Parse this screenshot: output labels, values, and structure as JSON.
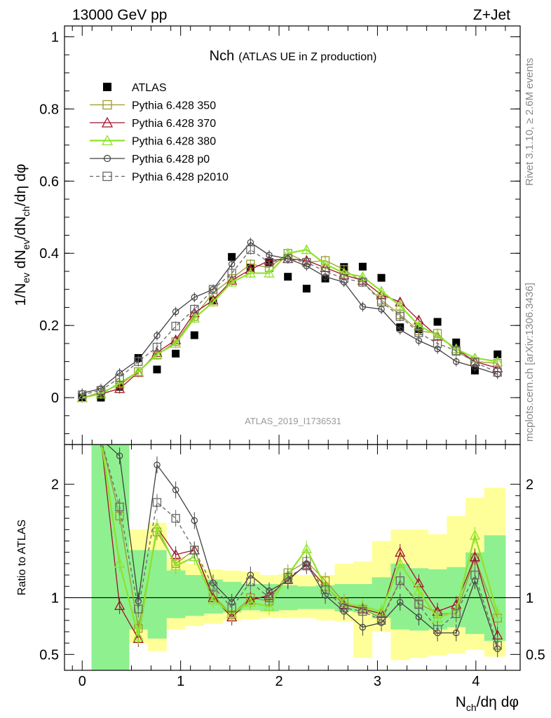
{
  "header": {
    "left": "13000 GeV pp",
    "right": "Z+Jet"
  },
  "side_text": {
    "rivet": "Rivet 3.1.10, ≥ 2.6M events",
    "mcplots": "mcplots.cern.ch [arXiv:1306.3436]"
  },
  "analysis_id": "ATLAS_2019_I1736531",
  "chart_data": [
    {
      "type": "scatter",
      "title_main": "Nch",
      "title_sub": "(ATLAS UE in Z production)",
      "ylabel": "1/N_ev dN_ev/dN_ch/dη dφ",
      "xlabel": "N_ch/dη dφ",
      "xlim": [
        -0.18,
        4.45
      ],
      "ylim": [
        -0.13,
        1.03
      ],
      "xticks": [
        "0",
        "1",
        "2",
        "3",
        "4"
      ],
      "yticks": [
        "0",
        "0.2",
        "0.4",
        "0.6",
        "0.8",
        "1"
      ],
      "legend_position": "top-left",
      "x": [
        0.0,
        0.19,
        0.38,
        0.57,
        0.76,
        0.95,
        1.14,
        1.33,
        1.52,
        1.71,
        1.9,
        2.09,
        2.28,
        2.47,
        2.66,
        2.85,
        3.04,
        3.23,
        3.42,
        3.61,
        3.8,
        3.99,
        4.22
      ],
      "series": [
        {
          "name": "ATLAS",
          "color": "#000000",
          "marker": "filled-square",
          "line": "none",
          "values": [
            0.0,
            0.0,
            0.03,
            0.11,
            0.078,
            0.122,
            0.173,
            0.27,
            0.39,
            0.36,
            0.375,
            0.335,
            0.302,
            0.33,
            0.362,
            0.363,
            0.332,
            0.195,
            0.19,
            0.21,
            0.153,
            0.075,
            0.12
          ]
        },
        {
          "name": "Pythia 6.428 350",
          "color": "#9a9a2e",
          "marker": "open-square",
          "line": "solid",
          "values": [
            0.0,
            0.015,
            0.035,
            0.072,
            0.118,
            0.155,
            0.225,
            0.29,
            0.33,
            0.37,
            0.36,
            0.4,
            0.375,
            0.38,
            0.355,
            0.32,
            0.27,
            0.23,
            0.185,
            0.178,
            0.128,
            0.1,
            0.095
          ]
        },
        {
          "name": "Pythia 6.428 370",
          "color": "#a0102a",
          "marker": "open-triangle",
          "line": "solid",
          "values": [
            0.0,
            0.01,
            0.025,
            0.07,
            0.125,
            0.16,
            0.235,
            0.27,
            0.325,
            0.355,
            0.38,
            0.385,
            0.38,
            0.36,
            0.34,
            0.325,
            0.285,
            0.265,
            0.215,
            0.17,
            0.135,
            0.1,
            0.082
          ]
        },
        {
          "name": "Pythia 6.428 380",
          "color": "#8ee22a",
          "marker": "open-triangle",
          "line": "solid",
          "values": [
            0.0,
            0.01,
            0.04,
            0.072,
            0.12,
            0.15,
            0.22,
            0.265,
            0.32,
            0.345,
            0.345,
            0.4,
            0.41,
            0.37,
            0.345,
            0.335,
            0.295,
            0.255,
            0.2,
            0.172,
            0.135,
            0.11,
            0.1
          ]
        },
        {
          "name": "Pythia 6.428 p0",
          "color": "#404040",
          "marker": "open-circle",
          "line": "solid",
          "values": [
            0.012,
            0.025,
            0.068,
            0.105,
            0.172,
            0.238,
            0.278,
            0.3,
            0.37,
            0.43,
            0.395,
            0.385,
            0.365,
            0.335,
            0.32,
            0.252,
            0.245,
            0.188,
            0.158,
            0.135,
            0.1,
            0.085,
            0.065
          ]
        },
        {
          "name": "Pythia 6.428 p2010",
          "color": "#666666",
          "marker": "open-square",
          "line": "dashed",
          "values": [
            0.008,
            0.02,
            0.055,
            0.1,
            0.14,
            0.198,
            0.245,
            0.3,
            0.345,
            0.41,
            0.375,
            0.385,
            0.375,
            0.35,
            0.33,
            0.32,
            0.265,
            0.225,
            0.18,
            0.15,
            0.13,
            0.098,
            0.07
          ]
        }
      ]
    },
    {
      "type": "scatter",
      "ylabel": "Ratio to ATLAS",
      "ylim": [
        0.36,
        2.35
      ],
      "yticks": [
        "0.5",
        "1",
        "2"
      ],
      "bands": {
        "edges": [
          0.095,
          0.285,
          0.475,
          0.665,
          0.855,
          1.045,
          1.235,
          1.425,
          1.615,
          1.805,
          1.995,
          2.185,
          2.375,
          2.565,
          2.755,
          2.945,
          3.135,
          3.325,
          3.515,
          3.705,
          3.895,
          4.085,
          4.3
        ],
        "stat_lo": [
          0.1,
          0.1,
          0.72,
          0.64,
          0.82,
          0.84,
          0.86,
          0.87,
          0.89,
          0.88,
          0.89,
          0.9,
          0.9,
          0.88,
          0.87,
          0.82,
          0.72,
          0.71,
          0.72,
          0.74,
          0.68,
          0.62
        ],
        "stat_hi": [
          2.6,
          2.6,
          1.42,
          1.42,
          1.24,
          1.2,
          1.16,
          1.14,
          1.12,
          1.12,
          1.11,
          1.1,
          1.11,
          1.12,
          1.12,
          1.18,
          1.3,
          1.26,
          1.25,
          1.27,
          1.4,
          1.55
        ],
        "tot_lo": [
          0.1,
          0.1,
          0.6,
          0.53,
          0.72,
          0.75,
          0.77,
          0.8,
          0.81,
          0.82,
          0.82,
          0.82,
          0.8,
          0.79,
          0.47,
          0.7,
          0.45,
          0.47,
          0.49,
          0.51,
          0.54,
          0.48
        ],
        "tot_hi": [
          2.6,
          2.6,
          1.6,
          1.66,
          1.36,
          1.3,
          1.25,
          1.24,
          1.23,
          1.2,
          1.21,
          1.2,
          1.2,
          1.3,
          1.32,
          1.5,
          1.6,
          1.6,
          1.56,
          1.72,
          1.88,
          1.97
        ]
      },
      "series": [
        {
          "name": "Pythia 6.428 350",
          "values": [
            null,
            2.4,
            1.72,
            0.73,
            1.58,
            1.3,
            1.42,
            1.02,
            0.85,
            1.0,
            0.97,
            1.22,
            1.32,
            1.15,
            0.96,
            0.9,
            0.82,
            1.15,
            0.95,
            0.86,
            0.86,
            1.35,
            0.82
          ]
        },
        {
          "name": "Pythia 6.428 370",
          "values": [
            null,
            2.4,
            0.93,
            0.64,
            1.62,
            1.38,
            1.42,
            1.0,
            0.83,
            0.98,
            1.02,
            1.16,
            1.29,
            1.1,
            0.94,
            0.9,
            0.86,
            1.4,
            1.13,
            0.88,
            0.94,
            1.36,
            0.67
          ]
        },
        {
          "name": "Pythia 6.428 380",
          "values": [
            null,
            2.4,
            1.3,
            0.66,
            1.62,
            1.28,
            1.36,
            0.98,
            0.86,
            0.96,
            0.92,
            1.2,
            1.43,
            1.1,
            0.95,
            0.92,
            0.88,
            1.3,
            1.06,
            0.82,
            0.88,
            1.55,
            0.86
          ]
        },
        {
          "name": "Pythia 6.428 p0",
          "values": [
            null,
            2.4,
            2.25,
            0.97,
            2.17,
            1.95,
            1.68,
            1.13,
            0.96,
            1.2,
            1.06,
            1.15,
            1.3,
            1.02,
            0.88,
            0.74,
            0.78,
            0.96,
            0.83,
            0.69,
            0.69,
            1.15,
            0.55
          ]
        },
        {
          "name": "Pythia 6.428 p2010",
          "values": [
            null,
            2.4,
            1.8,
            0.9,
            1.84,
            1.7,
            1.42,
            1.1,
            0.91,
            1.14,
            1.0,
            1.18,
            1.28,
            1.07,
            0.91,
            0.88,
            0.8,
            1.15,
            0.94,
            0.72,
            0.86,
            1.2,
            0.58
          ]
        }
      ]
    }
  ]
}
